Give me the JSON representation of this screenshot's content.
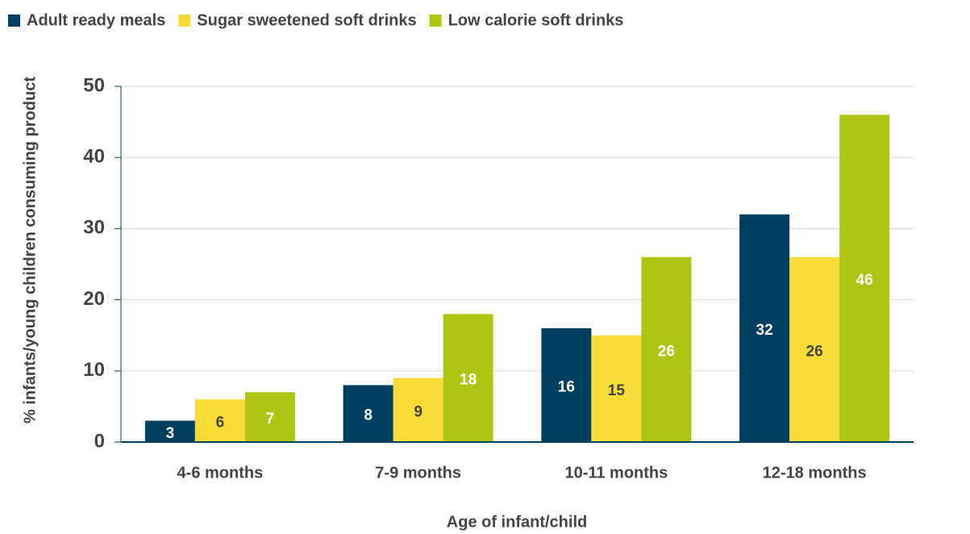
{
  "chart_data": {
    "type": "bar",
    "x_label": "Age of infant/child",
    "y_label": "% infants/young children consuming product",
    "categories": [
      "4-6 months",
      "7-9 months",
      "10-11 months",
      "12-18 months"
    ],
    "series": [
      {
        "name": "Adult ready meals",
        "color": "#003f5f",
        "values": [
          3,
          8,
          16,
          32
        ]
      },
      {
        "name": "Sugar sweetened soft drinks",
        "color": "#f9db36",
        "values": [
          6,
          9,
          15,
          26
        ]
      },
      {
        "name": "Low calorie soft drinks",
        "color": "#aec512",
        "values": [
          7,
          18,
          26,
          46
        ]
      }
    ],
    "ylim": [
      0,
      50
    ],
    "yticks": [
      0,
      10,
      20,
      30,
      40,
      50
    ],
    "grid": true,
    "legend": "top-left"
  }
}
